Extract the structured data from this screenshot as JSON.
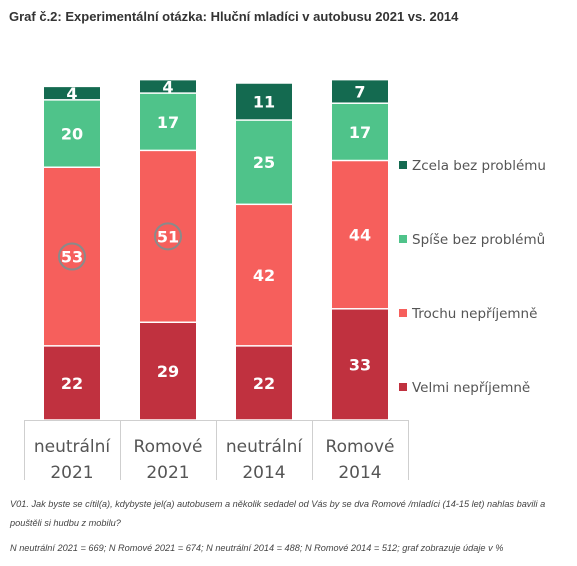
{
  "title": "Graf č.2: Experimentální otázka: Hluční mladíci v autobusu 2021 vs. 2014",
  "footnotes": {
    "question": "V01. Jak byste se cítil(a), kdybyste jel(a) autobusem a několik sedadel od Vás by se dva Romové /mladíci (14-15 let) nahlas bavili a pouštěli si hudbu z mobilu?",
    "sample": "N neutrální 2021 = 669; N Romové 2021 = 674; N neutrální 2014 = 488; N Romové 2014 = 512; graf zobrazuje údaje v %"
  },
  "chart_data": {
    "type": "bar",
    "stacked": true,
    "categories": [
      [
        "neutrální",
        "2021"
      ],
      [
        "Romové",
        "2021"
      ],
      [
        "neutrální",
        "2014"
      ],
      [
        "Romové",
        "2014"
      ]
    ],
    "series": [
      {
        "name": "Velmi nepříjemně",
        "color": "#c0313f",
        "values": [
          22,
          29,
          22,
          33
        ]
      },
      {
        "name": "Trochu nepříjemně",
        "color": "#f65f5c",
        "values": [
          53,
          51,
          42,
          44
        ]
      },
      {
        "name": "Spíše bez problémů",
        "color": "#4fc38a",
        "values": [
          20,
          17,
          25,
          17
        ]
      },
      {
        "name": "Zcela bez problému",
        "color": "#146a50",
        "values": [
          4,
          4,
          11,
          7
        ]
      }
    ],
    "highlighted": [
      {
        "category_index": 0,
        "series": "Trochu nepříjemně"
      },
      {
        "category_index": 1,
        "series": "Trochu nepříjemně"
      }
    ],
    "ylim": [
      0,
      100
    ],
    "legend_position": "right",
    "grid": false,
    "unit": "%"
  }
}
